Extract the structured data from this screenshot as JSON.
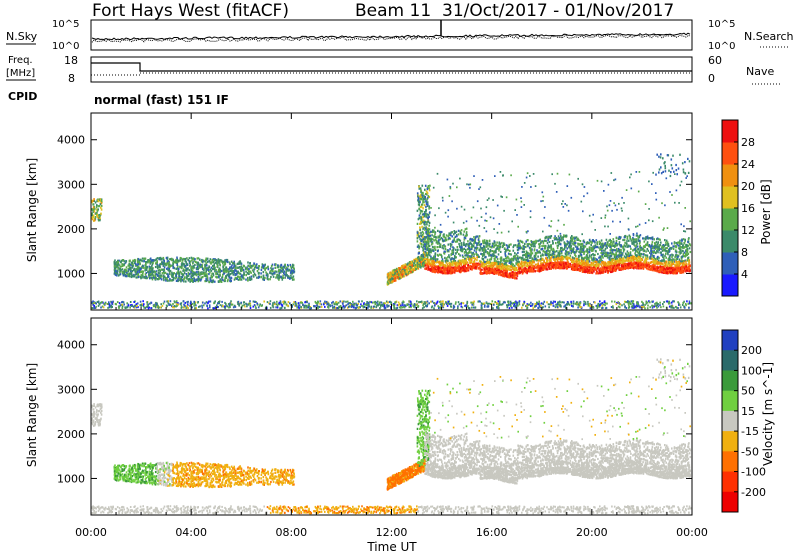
{
  "header": {
    "station": "Fort Hays West (fitACF)",
    "beam": "Beam 11",
    "date_range": "31/Oct/2017 - 01/Nov/2017"
  },
  "noise_panel": {
    "left_label": "N.Sky",
    "right_label": "N.Search",
    "left_ticks": [
      "10^5",
      "10^0"
    ],
    "right_ticks": [
      "10^5",
      "10^0"
    ]
  },
  "freq_panel": {
    "left_label_1": "Freq.",
    "left_label_2": "[MHz]",
    "right_label": "Nave",
    "left_ticks": [
      "18",
      "8"
    ],
    "right_ticks": [
      "60",
      "0"
    ],
    "cpid_label": "CPID",
    "cpid_text": "normal (fast) 151 IF"
  },
  "chart_data": [
    {
      "type": "heatmap",
      "title": "",
      "ylabel": "Slant Range [km]",
      "xlabel": "",
      "xlim": [
        "00:00",
        "24:00"
      ],
      "ylim": [
        180,
        4600
      ],
      "y_ticks": [
        "1000",
        "2000",
        "3000",
        "4000"
      ],
      "colorbar": {
        "label": "Power [dB]",
        "ticks": [
          "4",
          "8",
          "12",
          "16",
          "20",
          "24",
          "28"
        ],
        "colors": [
          "#1a1aff",
          "#2f5fb8",
          "#3b8a6a",
          "#5aaa4a",
          "#e0c020",
          "#f09010",
          "#ff5010",
          "#ee1010"
        ]
      },
      "features": [
        {
          "time_range": [
            "01:00",
            "08:00"
          ],
          "range_km": [
            800,
            1400
          ],
          "power_db": 10
        },
        {
          "time_range": [
            "12:00",
            "13:20"
          ],
          "range_km": [
            900,
            1300
          ],
          "power_db": 20
        },
        {
          "time_range": [
            "13:20",
            "24:00"
          ],
          "range_km": [
            1000,
            1200
          ],
          "power_db": 28
        }
      ]
    },
    {
      "type": "heatmap",
      "title": "",
      "ylabel": "Slant Range [km]",
      "xlabel": "Time UT",
      "xlim": [
        "00:00",
        "24:00"
      ],
      "ylim": [
        180,
        4600
      ],
      "x_ticks": [
        "00:00",
        "04:00",
        "08:00",
        "12:00",
        "16:00",
        "20:00",
        "00:00"
      ],
      "y_ticks": [
        "1000",
        "2000",
        "3000",
        "4000"
      ],
      "colorbar": {
        "label": "Velocity [m s^-1]",
        "ticks": [
          "200",
          "100",
          "50",
          "15",
          "-15",
          "-50",
          "-100",
          "-200"
        ],
        "colors": [
          "#2040c0",
          "#2a6a6a",
          "#3a9a3a",
          "#70d040",
          "#c8c8c0",
          "#f0b010",
          "#ff7000",
          "#ff3000",
          "#ee0000"
        ]
      },
      "features": [
        {
          "time_range": [
            "01:00",
            "03:00"
          ],
          "range_km": [
            800,
            1400
          ],
          "velocity": 40
        },
        {
          "time_range": [
            "03:00",
            "08:00"
          ],
          "range_km": [
            800,
            1300
          ],
          "velocity": -30
        },
        {
          "time_range": [
            "12:00",
            "13:20"
          ],
          "range_km": [
            900,
            1500
          ],
          "velocity": -60
        },
        {
          "time_range": [
            "13:20",
            "24:00"
          ],
          "range_km": [
            900,
            1800
          ],
          "velocity": 0
        }
      ]
    }
  ]
}
